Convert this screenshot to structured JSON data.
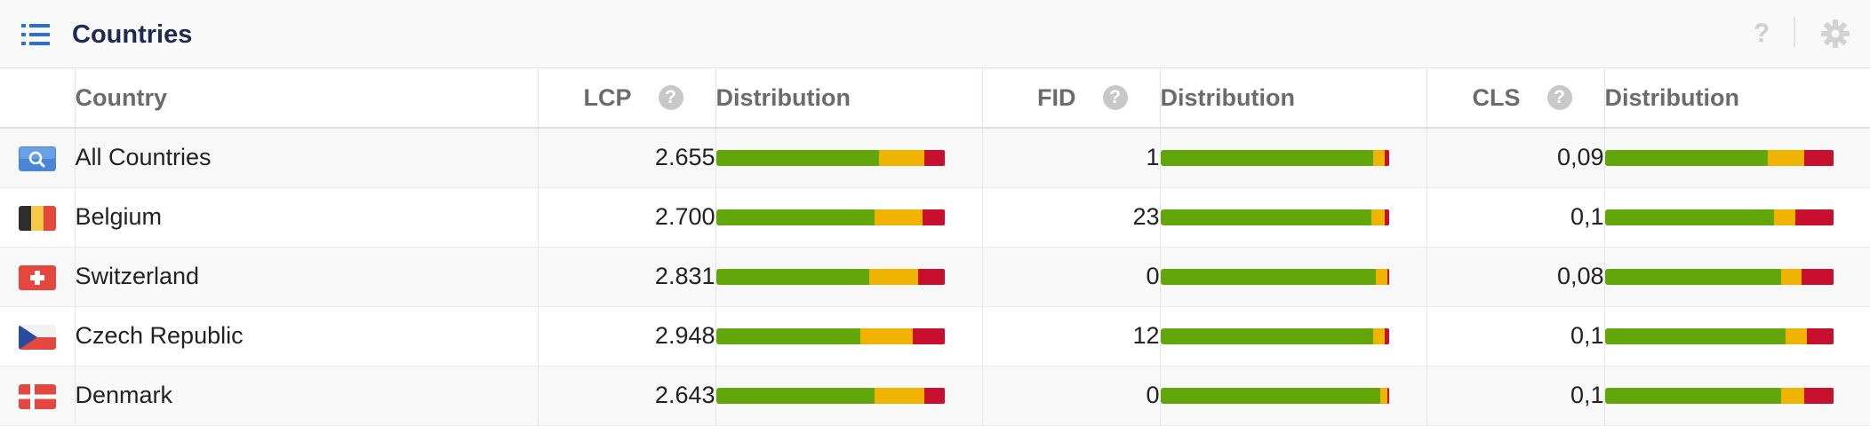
{
  "header": {
    "title": "Countries",
    "help_glyph": "?"
  },
  "columns": {
    "country": "Country",
    "lcp": "LCP",
    "lcp_dist": "Distribution",
    "fid": "FID",
    "fid_dist": "Distribution",
    "cls": "CLS",
    "cls_dist": "Distribution",
    "help_glyph": "?"
  },
  "colors": {
    "good": "#62a60a",
    "needs_improvement": "#f0b400",
    "poor": "#c8102e"
  },
  "rows": [
    {
      "flag": "search-icon",
      "country": "All Countries",
      "lcp": "2.655",
      "fid": "1",
      "cls": "0,09",
      "lcp_dist": [
        0.71,
        0.2,
        0.09
      ],
      "fid_dist": [
        0.93,
        0.05,
        0.02
      ],
      "cls_dist": [
        0.71,
        0.16,
        0.13
      ]
    },
    {
      "flag": "belgium-flag",
      "country": "Belgium",
      "lcp": "2.700",
      "fid": "23",
      "cls": "0,1",
      "lcp_dist": [
        0.69,
        0.21,
        0.1
      ],
      "fid_dist": [
        0.92,
        0.06,
        0.02
      ],
      "cls_dist": [
        0.74,
        0.09,
        0.17
      ]
    },
    {
      "flag": "switzerland-flag",
      "country": "Switzerland",
      "lcp": "2.831",
      "fid": "0",
      "cls": "0,08",
      "lcp_dist": [
        0.67,
        0.21,
        0.12
      ],
      "fid_dist": [
        0.94,
        0.05,
        0.01
      ],
      "cls_dist": [
        0.77,
        0.09,
        0.14
      ]
    },
    {
      "flag": "czech-flag",
      "country": "Czech Republic",
      "lcp": "2.948",
      "fid": "12",
      "cls": "0,1",
      "lcp_dist": [
        0.63,
        0.23,
        0.14
      ],
      "fid_dist": [
        0.93,
        0.05,
        0.02
      ],
      "cls_dist": [
        0.79,
        0.09,
        0.12
      ]
    },
    {
      "flag": "denmark-flag",
      "country": "Denmark",
      "lcp": "2.643",
      "fid": "0",
      "cls": "0,1",
      "lcp_dist": [
        0.69,
        0.22,
        0.09
      ],
      "fid_dist": [
        0.96,
        0.03,
        0.01
      ],
      "cls_dist": [
        0.77,
        0.1,
        0.13
      ]
    }
  ]
}
